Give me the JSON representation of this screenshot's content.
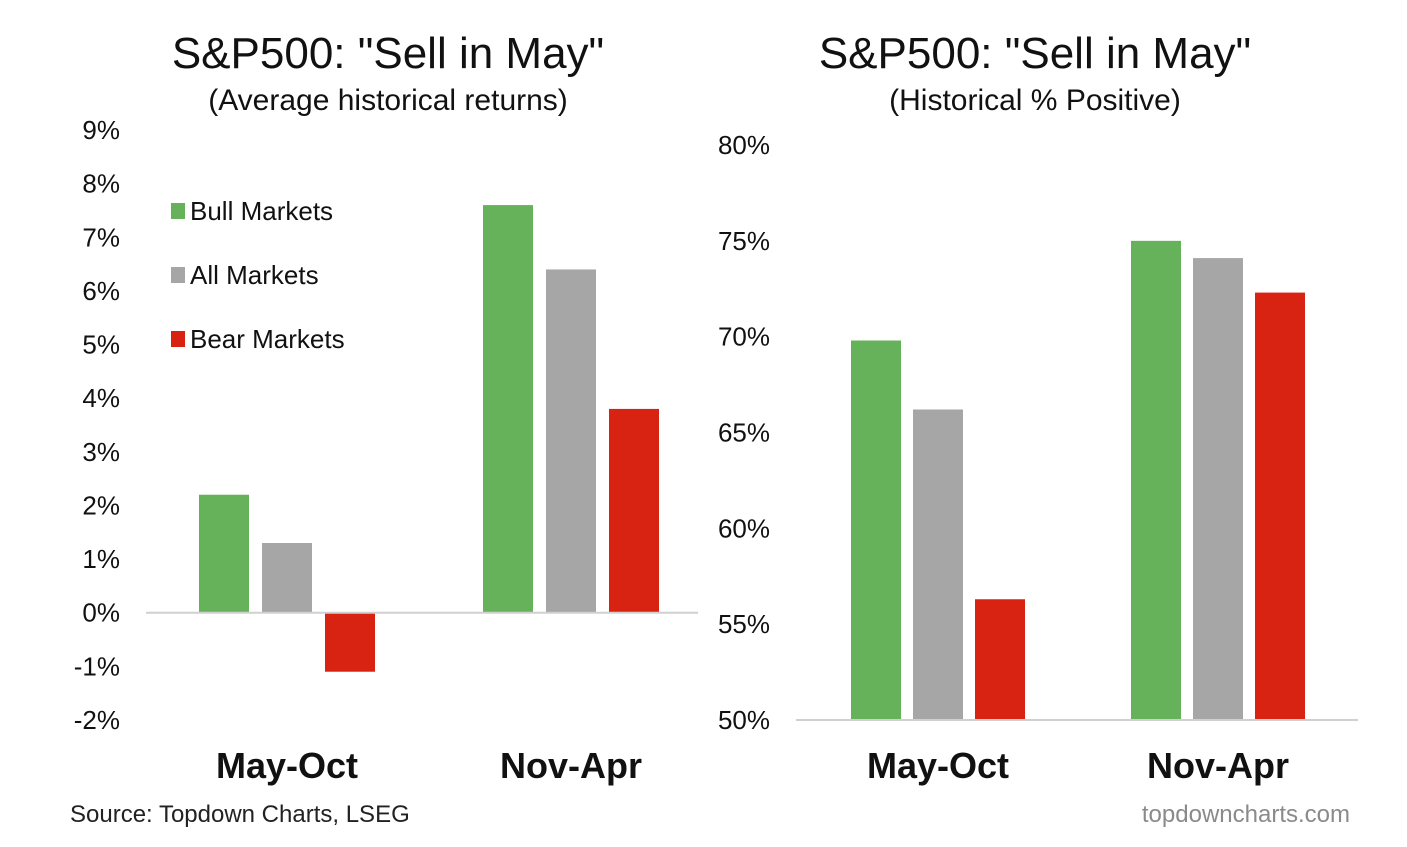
{
  "colors": {
    "bull": "#66b25a",
    "all": "#a6a6a6",
    "bear": "#d92312",
    "axis": "#d0d0d0"
  },
  "chart_data": [
    {
      "type": "bar",
      "title": "S&P500: \"Sell in May\"",
      "subtitle": "(Average historical returns)",
      "categories": [
        "May-Oct",
        "Nov-Apr"
      ],
      "series": [
        {
          "name": "Bull Markets",
          "values": [
            2.2,
            7.6
          ]
        },
        {
          "name": "All Markets",
          "values": [
            1.3,
            6.4
          ]
        },
        {
          "name": "Bear Markets",
          "values": [
            -1.1,
            3.8
          ]
        }
      ],
      "ylim": [
        -2,
        9
      ],
      "yticks": [
        "9%",
        "8%",
        "7%",
        "6%",
        "5%",
        "4%",
        "3%",
        "2%",
        "1%",
        "0%",
        "-1%",
        "-2%"
      ],
      "legend": [
        "Bull Markets",
        "All Markets",
        "Bear Markets"
      ],
      "legend_position": "top-left"
    },
    {
      "type": "bar",
      "title": "S&P500: \"Sell in May\"",
      "subtitle": "(Historical % Positive)",
      "categories": [
        "May-Oct",
        "Nov-Apr"
      ],
      "series": [
        {
          "name": "Bull Markets",
          "values": [
            69.8,
            75.0
          ]
        },
        {
          "name": "All Markets",
          "values": [
            66.2,
            74.1
          ]
        },
        {
          "name": "Bear Markets",
          "values": [
            56.3,
            72.3
          ]
        }
      ],
      "ylim": [
        50,
        80
      ],
      "yticks": [
        "80%",
        "75%",
        "70%",
        "65%",
        "60%",
        "55%",
        "50%"
      ]
    }
  ],
  "footer": {
    "source": "Source: Topdown Charts, LSEG",
    "brand": "topdowncharts.com"
  }
}
